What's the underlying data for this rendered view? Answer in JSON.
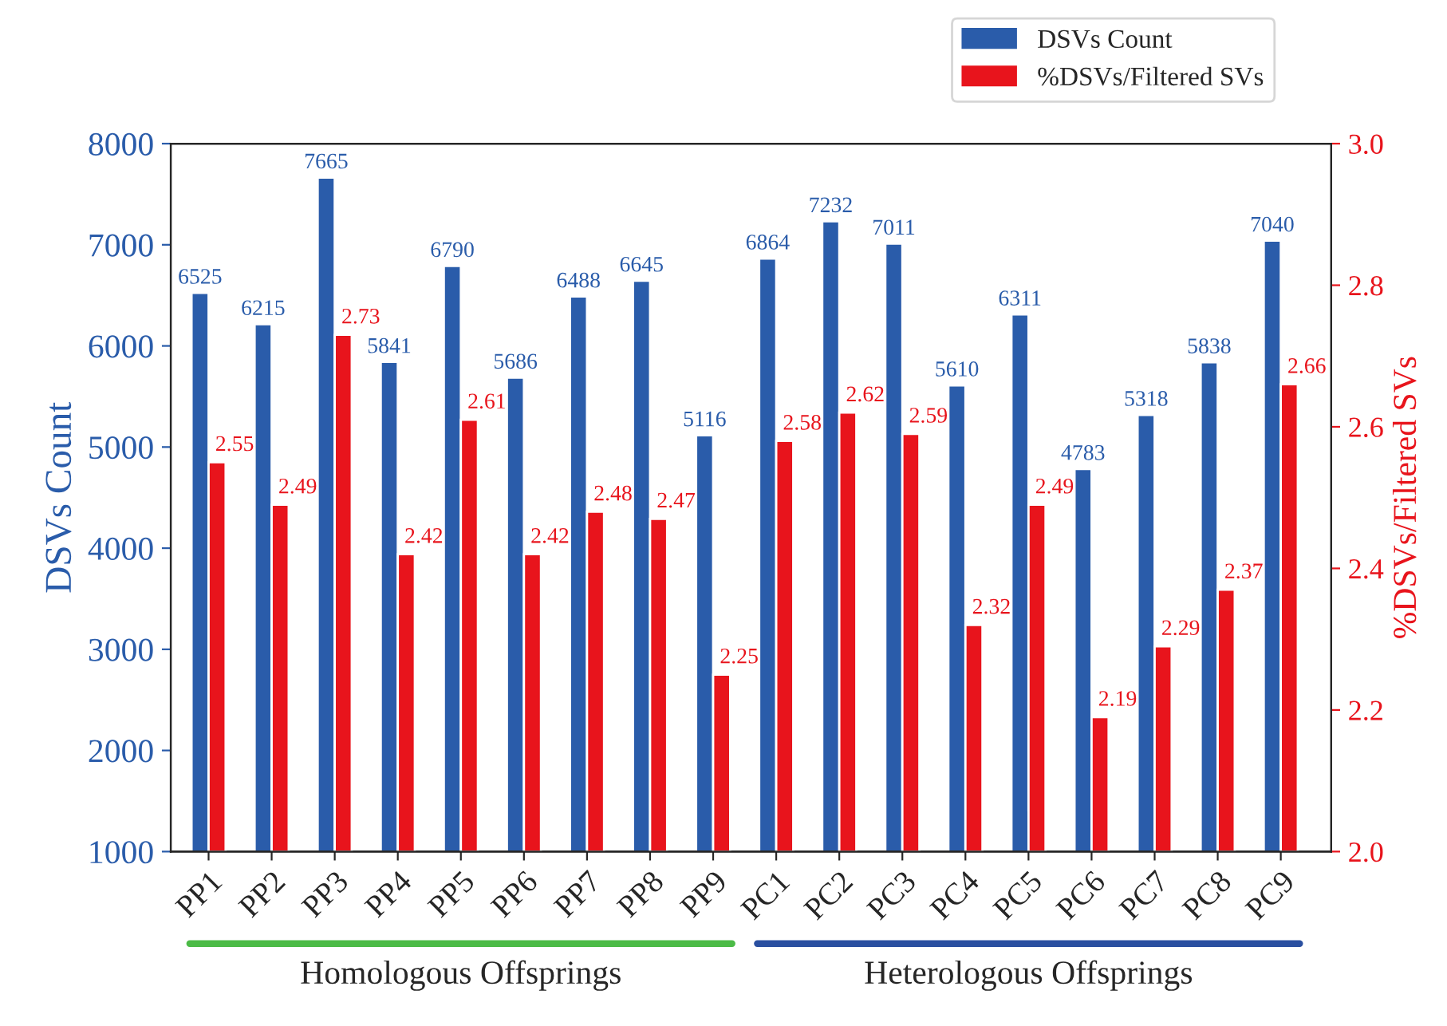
{
  "chart_data": {
    "type": "bar",
    "categories": [
      "PP1",
      "PP2",
      "PP3",
      "PP4",
      "PP5",
      "PP6",
      "PP7",
      "PP8",
      "PP9",
      "PC1",
      "PC2",
      "PC3",
      "PC4",
      "PC5",
      "PC6",
      "PC7",
      "PC8",
      "PC9"
    ],
    "series": [
      {
        "name": "DSVs Count",
        "color": "#2a5caa",
        "values": [
          6525,
          6215,
          7665,
          5841,
          6790,
          5686,
          6488,
          6645,
          5116,
          6864,
          7232,
          7011,
          5610,
          6311,
          4783,
          5318,
          5838,
          7040
        ]
      },
      {
        "name": "%DSVs/Filtered SVs",
        "color": "#e8141c",
        "axis": "y2",
        "values": [
          2.55,
          2.49,
          2.73,
          2.42,
          2.61,
          2.42,
          2.48,
          2.47,
          2.25,
          2.58,
          2.62,
          2.59,
          2.32,
          2.49,
          2.19,
          2.29,
          2.37,
          2.66
        ]
      }
    ],
    "ylabel": "DSVs Count",
    "y2label": "%DSVs/Filtered SVs",
    "ylim": [
      1000,
      8000
    ],
    "yticks": [
      1000,
      2000,
      3000,
      4000,
      5000,
      6000,
      7000,
      8000
    ],
    "y2lim": [
      2.0,
      3.0
    ],
    "y2ticks": [
      {
        "value": 2.0,
        "label": "2.0"
      },
      {
        "value": 2.2,
        "label": "2.2"
      },
      {
        "value": 2.4,
        "label": "2.4"
      },
      {
        "value": 2.6,
        "label": "2.6"
      },
      {
        "value": 2.8,
        "label": "2.8"
      },
      {
        "value": 3.0,
        "label": "3.0"
      }
    ],
    "data_labels": true,
    "legend": "top right",
    "grid": false,
    "annotations": [
      "Homologous Offsprings",
      "Heterologous Offsprings"
    ]
  }
}
